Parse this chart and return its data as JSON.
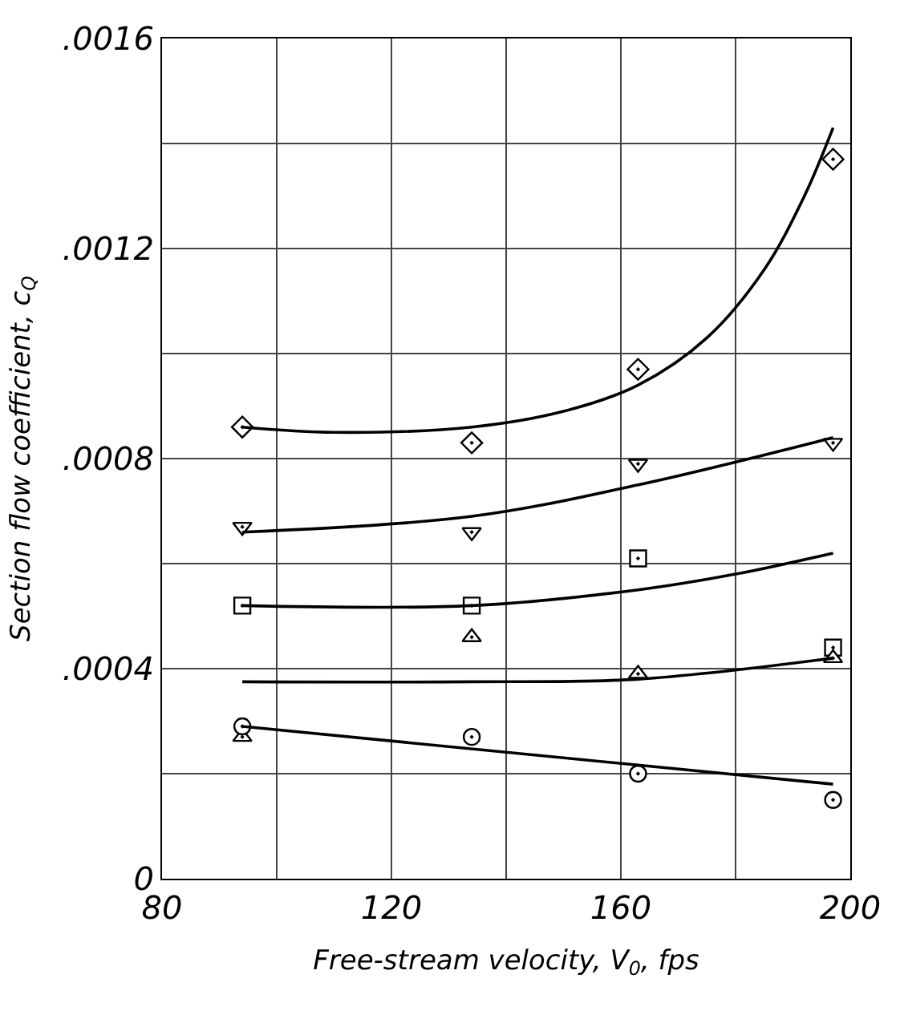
{
  "chart_data": {
    "type": "scatter",
    "xlabel": "Free-stream velocity, V$_{0}$, fps",
    "ylabel": "Section flow coefficient, c$_{Q}$",
    "xlim": [
      80,
      200
    ],
    "ylim": [
      0,
      0.0016
    ],
    "xticks": [
      80,
      {
        "value": 100,
        "label": null
      },
      120,
      {
        "value": 140,
        "label": null
      },
      160,
      {
        "value": 180,
        "label": null
      },
      200
    ],
    "yticks": [
      {
        "value": 0,
        "label": "0"
      },
      {
        "value": 0.0002,
        "label": null
      },
      {
        "value": 0.0004,
        "label": ".0004"
      },
      {
        "value": 0.0006,
        "label": null
      },
      {
        "value": 0.0008,
        "label": ".0008"
      },
      {
        "value": 0.001,
        "label": null
      },
      {
        "value": 0.0012,
        "label": ".0012"
      },
      {
        "value": 0.0014,
        "label": null
      },
      {
        "value": 0.0016,
        "label": ".0016"
      }
    ],
    "grid": true,
    "series": [
      {
        "marker": "diamond",
        "color": "#000000",
        "x": [
          94,
          134,
          163,
          197
        ],
        "values": [
          0.00086,
          0.00083,
          0.00097,
          0.00137
        ]
      },
      {
        "marker": "triangle-down",
        "color": "#000000",
        "x": [
          94,
          134,
          163,
          197
        ],
        "values": [
          0.00067,
          0.00066,
          0.00079,
          0.00083
        ]
      },
      {
        "marker": "square",
        "color": "#000000",
        "x": [
          94,
          134,
          163,
          197
        ],
        "values": [
          0.00052,
          0.00052,
          0.00061,
          0.00044
        ]
      },
      {
        "marker": "triangle",
        "color": "#000000",
        "x": [
          94,
          134,
          163,
          197
        ],
        "values": [
          0.00027,
          0.00046,
          0.00039,
          0.00042
        ]
      },
      {
        "marker": "circle",
        "color": "#000000",
        "x": [
          94,
          134,
          163,
          197
        ],
        "values": [
          0.00029,
          0.00027,
          0.0002,
          0.00015
        ]
      },
      {
        "type": "line",
        "marker": "none",
        "color": "#000000",
        "x": [
          94,
          110,
          134,
          150,
          163,
          175,
          185,
          192,
          197
        ],
        "values": [
          0.00086,
          0.00085,
          0.00086,
          0.00089,
          0.00094,
          0.00103,
          0.00116,
          0.0013,
          0.00143
        ]
      },
      {
        "type": "line",
        "marker": "none",
        "color": "#000000",
        "x": [
          94,
          134,
          163,
          197
        ],
        "values": [
          0.00066,
          0.00069,
          0.00075,
          0.00084
        ]
      },
      {
        "type": "line",
        "marker": "none",
        "color": "#000000",
        "x": [
          94,
          134,
          163,
          180,
          197
        ],
        "values": [
          0.00052,
          0.00052,
          0.00055,
          0.00058,
          0.00062
        ]
      },
      {
        "type": "line",
        "marker": "none",
        "color": "#000000",
        "x": [
          94,
          134,
          163,
          197
        ],
        "values": [
          0.000375,
          0.000375,
          0.00038,
          0.00042
        ]
      },
      {
        "type": "line",
        "marker": "none",
        "color": "#000000",
        "x": [
          94,
          197
        ],
        "values": [
          0.00029,
          0.00018
        ]
      }
    ]
  }
}
